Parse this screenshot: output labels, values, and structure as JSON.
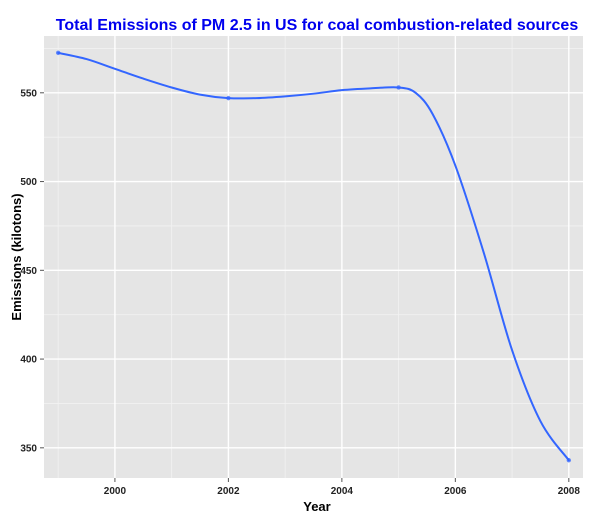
{
  "chart_data": {
    "type": "line",
    "title": "Total Emissions of PM 2.5 in US for coal combustion-related sources",
    "xlabel": "Year",
    "ylabel": "Emissions (kilotons)",
    "xlim": [
      1998.75,
      2008.25
    ],
    "ylim": [
      333,
      582
    ],
    "x_ticks": [
      2000,
      2002,
      2004,
      2006,
      2008
    ],
    "y_ticks": [
      350,
      400,
      450,
      500,
      550
    ],
    "grid": true,
    "legend": "none",
    "colors": {
      "title": "#0000ee",
      "line": "#3366ff",
      "panel_background": "#e5e5e5",
      "grid_major": "#ffffff",
      "grid_minor": "#f2f2f2"
    },
    "series": [
      {
        "points": [
          {
            "x": 1999,
            "y": 572.5
          },
          {
            "x": 2002,
            "y": 547.0
          },
          {
            "x": 2005,
            "y": 553.0
          },
          {
            "x": 2008,
            "y": 343.0
          }
        ],
        "smoothed": [
          {
            "x": 1999.0,
            "y": 572.5
          },
          {
            "x": 1999.5,
            "y": 569.0
          },
          {
            "x": 2000.0,
            "y": 563.5
          },
          {
            "x": 2000.5,
            "y": 558.0
          },
          {
            "x": 2001.0,
            "y": 553.0
          },
          {
            "x": 2001.5,
            "y": 549.0
          },
          {
            "x": 2002.0,
            "y": 547.0
          },
          {
            "x": 2002.5,
            "y": 547.0
          },
          {
            "x": 2003.0,
            "y": 548.0
          },
          {
            "x": 2003.5,
            "y": 549.5
          },
          {
            "x": 2004.0,
            "y": 551.5
          },
          {
            "x": 2004.5,
            "y": 552.5
          },
          {
            "x": 2005.0,
            "y": 553.0
          },
          {
            "x": 2005.3,
            "y": 550.0
          },
          {
            "x": 2005.6,
            "y": 538.0
          },
          {
            "x": 2006.0,
            "y": 509.0
          },
          {
            "x": 2006.5,
            "y": 460.0
          },
          {
            "x": 2007.0,
            "y": 405.0
          },
          {
            "x": 2007.5,
            "y": 365.0
          },
          {
            "x": 2008.0,
            "y": 343.0
          }
        ]
      }
    ]
  }
}
